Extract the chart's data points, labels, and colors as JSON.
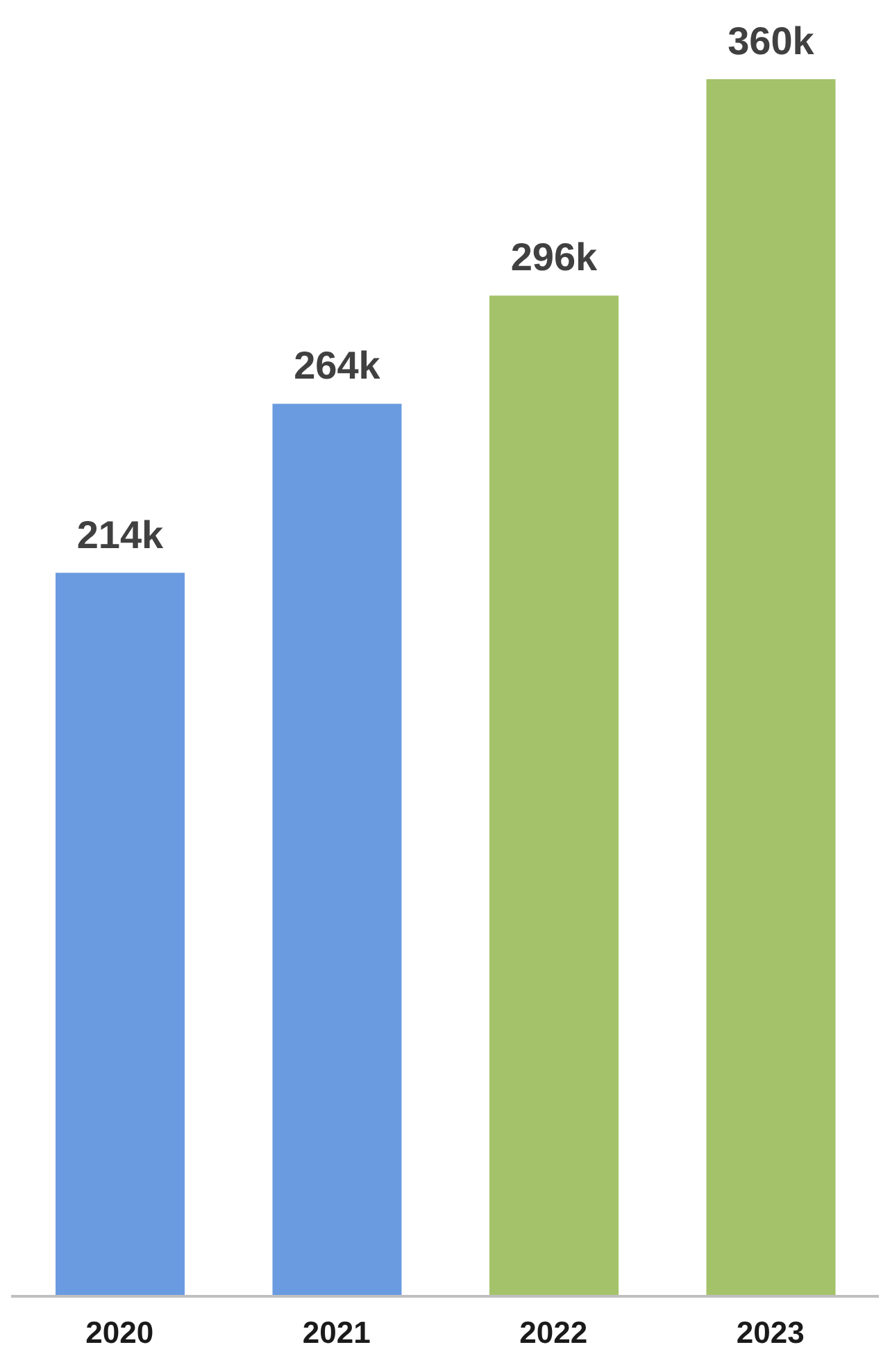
{
  "chart_data": {
    "type": "bar",
    "categories": [
      "2020",
      "2021",
      "2022",
      "2023"
    ],
    "values": [
      214,
      264,
      296,
      360
    ],
    "value_labels": [
      "214k",
      "264k",
      "296k",
      "360k"
    ],
    "colors": [
      "#6a9be0",
      "#6a9be0",
      "#a3c26a",
      "#a3c26a"
    ],
    "tick_labels": "x",
    "grid": false
  }
}
